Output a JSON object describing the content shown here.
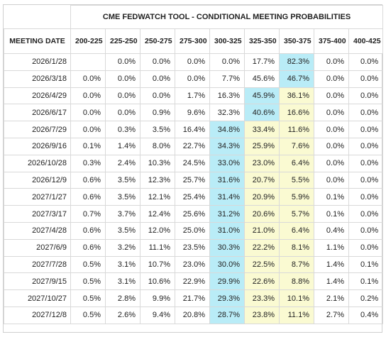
{
  "title": "CME FEDWATCH TOOL - CONDITIONAL MEETING PROBABILITIES",
  "columns": [
    "MEETING DATE",
    "200-225",
    "225-250",
    "250-275",
    "275-300",
    "300-325",
    "325-350",
    "350-375",
    "375-400",
    "400-425"
  ],
  "rows": [
    {
      "date": "2026/1/28",
      "values": [
        "",
        "0.0%",
        "0.0%",
        "0.0%",
        "0.0%",
        "17.7%",
        "82.3%",
        "0.0%",
        "0.0%"
      ],
      "blue": [
        6
      ],
      "yellow": []
    },
    {
      "date": "2026/3/18",
      "values": [
        "0.0%",
        "0.0%",
        "0.0%",
        "0.0%",
        "7.7%",
        "45.6%",
        "46.7%",
        "0.0%",
        "0.0%"
      ],
      "blue": [
        6
      ],
      "yellow": []
    },
    {
      "date": "2026/4/29",
      "values": [
        "0.0%",
        "0.0%",
        "0.0%",
        "1.7%",
        "16.3%",
        "45.9%",
        "36.1%",
        "0.0%",
        "0.0%"
      ],
      "blue": [
        5
      ],
      "yellow": [
        6
      ]
    },
    {
      "date": "2026/6/17",
      "values": [
        "0.0%",
        "0.0%",
        "0.9%",
        "9.6%",
        "32.3%",
        "40.6%",
        "16.6%",
        "0.0%",
        "0.0%"
      ],
      "blue": [
        5
      ],
      "yellow": [
        6
      ]
    },
    {
      "date": "2026/7/29",
      "values": [
        "0.0%",
        "0.3%",
        "3.5%",
        "16.4%",
        "34.8%",
        "33.4%",
        "11.6%",
        "0.0%",
        "0.0%"
      ],
      "blue": [
        4
      ],
      "yellow": [
        5,
        6
      ]
    },
    {
      "date": "2026/9/16",
      "values": [
        "0.1%",
        "1.4%",
        "8.0%",
        "22.7%",
        "34.3%",
        "25.9%",
        "7.6%",
        "0.0%",
        "0.0%"
      ],
      "blue": [
        4
      ],
      "yellow": [
        5,
        6
      ]
    },
    {
      "date": "2026/10/28",
      "values": [
        "0.3%",
        "2.4%",
        "10.3%",
        "24.5%",
        "33.0%",
        "23.0%",
        "6.4%",
        "0.0%",
        "0.0%"
      ],
      "blue": [
        4
      ],
      "yellow": [
        5,
        6
      ]
    },
    {
      "date": "2026/12/9",
      "values": [
        "0.6%",
        "3.5%",
        "12.3%",
        "25.7%",
        "31.6%",
        "20.7%",
        "5.5%",
        "0.0%",
        "0.0%"
      ],
      "blue": [
        4
      ],
      "yellow": [
        5,
        6
      ]
    },
    {
      "date": "2027/1/27",
      "values": [
        "0.6%",
        "3.5%",
        "12.1%",
        "25.4%",
        "31.4%",
        "20.9%",
        "5.9%",
        "0.1%",
        "0.0%"
      ],
      "blue": [
        4
      ],
      "yellow": [
        5,
        6
      ]
    },
    {
      "date": "2027/3/17",
      "values": [
        "0.7%",
        "3.7%",
        "12.4%",
        "25.6%",
        "31.2%",
        "20.6%",
        "5.7%",
        "0.1%",
        "0.0%"
      ],
      "blue": [
        4
      ],
      "yellow": [
        5,
        6
      ]
    },
    {
      "date": "2027/4/28",
      "values": [
        "0.6%",
        "3.5%",
        "12.0%",
        "25.0%",
        "31.0%",
        "21.0%",
        "6.4%",
        "0.4%",
        "0.0%"
      ],
      "blue": [
        4
      ],
      "yellow": [
        5,
        6
      ]
    },
    {
      "date": "2027/6/9",
      "values": [
        "0.6%",
        "3.2%",
        "11.1%",
        "23.5%",
        "30.3%",
        "22.2%",
        "8.1%",
        "1.1%",
        "0.0%"
      ],
      "blue": [
        4
      ],
      "yellow": [
        5,
        6
      ]
    },
    {
      "date": "2027/7/28",
      "values": [
        "0.5%",
        "3.1%",
        "10.7%",
        "23.0%",
        "30.0%",
        "22.5%",
        "8.7%",
        "1.4%",
        "0.1%"
      ],
      "blue": [
        4
      ],
      "yellow": [
        5,
        6
      ]
    },
    {
      "date": "2027/9/15",
      "values": [
        "0.5%",
        "3.1%",
        "10.6%",
        "22.9%",
        "29.9%",
        "22.6%",
        "8.8%",
        "1.4%",
        "0.1%"
      ],
      "blue": [
        4
      ],
      "yellow": [
        5,
        6
      ]
    },
    {
      "date": "2027/10/27",
      "values": [
        "0.5%",
        "2.8%",
        "9.9%",
        "21.7%",
        "29.3%",
        "23.3%",
        "10.1%",
        "2.1%",
        "0.2%"
      ],
      "blue": [
        4
      ],
      "yellow": [
        5,
        6
      ]
    },
    {
      "date": "2027/12/8",
      "values": [
        "0.5%",
        "2.6%",
        "9.4%",
        "20.8%",
        "28.7%",
        "23.8%",
        "11.1%",
        "2.7%",
        "0.4%"
      ],
      "blue": [
        4
      ],
      "yellow": [
        5,
        6
      ]
    }
  ],
  "colors": {
    "highlight_max": "#b9ecf7",
    "highlight_secondary": "#fafad2"
  }
}
